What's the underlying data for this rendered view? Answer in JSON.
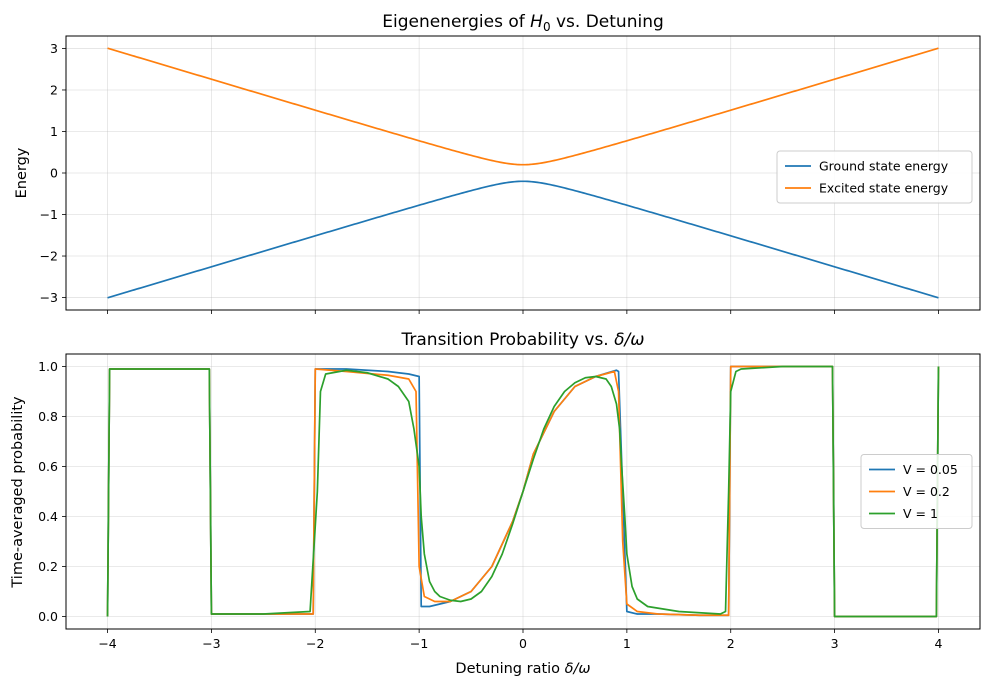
{
  "chart_data": [
    {
      "type": "line",
      "title": "Eigenenergies of H₀ vs. Detuning",
      "title_parts": {
        "pre": "Eigenenergies of ",
        "sym": "H",
        "sub": "0",
        "post": " vs. Detuning"
      },
      "xlabel": "",
      "ylabel": "Energy",
      "xlim": [
        -4.4,
        4.4
      ],
      "ylim": [
        -3.3,
        3.3
      ],
      "xticks": [
        -4,
        -3,
        -2,
        -1,
        0,
        1,
        2,
        3,
        4
      ],
      "xtick_labels_visible": false,
      "yticks": [
        3,
        2,
        1,
        0,
        -1,
        -2,
        -3
      ],
      "ytick_labels": [
        "3",
        "2",
        "1",
        "0",
        "−1",
        "−2",
        "−3"
      ],
      "grid": true,
      "legend": "center-right",
      "gap": 0.2,
      "series": [
        {
          "name": "Ground state energy",
          "color": "#1f77b4",
          "formula": "-sqrt((x*3/4)^2 + 0.2^2)",
          "x": [
            -4,
            -3,
            -2,
            -1,
            -0.5,
            0,
            0.5,
            1,
            2,
            3,
            4
          ],
          "y": [
            -3.0,
            -2.25,
            -1.51,
            -0.78,
            -0.43,
            -0.2,
            -0.43,
            -0.78,
            -1.51,
            -2.25,
            -3.0
          ]
        },
        {
          "name": "Excited state energy",
          "color": "#ff7f0e",
          "x": [
            -4,
            -3,
            -2,
            -1,
            -0.5,
            0,
            0.5,
            1,
            2,
            3,
            4
          ],
          "y": [
            3.0,
            2.25,
            1.51,
            0.78,
            0.43,
            0.2,
            0.43,
            0.78,
            1.51,
            2.25,
            3.0
          ]
        }
      ]
    },
    {
      "type": "line",
      "title": "Transition Probability vs. δ/ω",
      "title_parts": {
        "pre": "Transition Probability vs. ",
        "sym": "δ/ω"
      },
      "xlabel": "Detuning ratio δ/ω",
      "xlabel_parts": {
        "pre": "Detuning ratio ",
        "sym": "δ/ω"
      },
      "ylabel": "Time-averaged probability",
      "xlim": [
        -4.4,
        4.4
      ],
      "ylim": [
        -0.05,
        1.05
      ],
      "xticks": [
        -4,
        -3,
        -2,
        -1,
        0,
        1,
        2,
        3,
        4
      ],
      "xtick_labels": [
        "−4",
        "−3",
        "−2",
        "−1",
        "0",
        "1",
        "2",
        "3",
        "4"
      ],
      "yticks": [
        0.0,
        0.2,
        0.4,
        0.6,
        0.8,
        1.0
      ],
      "ytick_labels": [
        "0.0",
        "0.2",
        "0.4",
        "0.6",
        "0.8",
        "1.0"
      ],
      "grid": true,
      "legend": "center-right",
      "series": [
        {
          "name": "V = 0.05",
          "color": "#1f77b4",
          "x": [
            -4,
            -3.98,
            -3.5,
            -3.02,
            -3.0,
            -2.5,
            -2.02,
            -2.0,
            -1.7,
            -1.3,
            -1.1,
            -1.0,
            -0.98,
            -0.9,
            -0.7,
            -0.5,
            -0.3,
            -0.1,
            0,
            0.1,
            0.3,
            0.5,
            0.7,
            0.9,
            0.92,
            1.0,
            1.1,
            1.3,
            1.7,
            1.98,
            2.0,
            2.5,
            2.98,
            3.0,
            3.5,
            3.98,
            4.0
          ],
          "y": [
            0.0,
            0.99,
            0.99,
            0.99,
            0.01,
            0.01,
            0.01,
            0.99,
            0.99,
            0.98,
            0.97,
            0.96,
            0.04,
            0.04,
            0.06,
            0.1,
            0.2,
            0.38,
            0.5,
            0.65,
            0.82,
            0.92,
            0.96,
            0.985,
            0.98,
            0.02,
            0.01,
            0.01,
            0.005,
            0.005,
            1.0,
            1.0,
            1.0,
            0.0,
            0.0,
            0.0,
            1.0
          ]
        },
        {
          "name": "V = 0.2",
          "color": "#ff7f0e",
          "x": [
            -4,
            -3.98,
            -3.5,
            -3.02,
            -3.0,
            -2.5,
            -2.02,
            -2.0,
            -1.7,
            -1.3,
            -1.1,
            -1.03,
            -1.0,
            -0.95,
            -0.85,
            -0.7,
            -0.5,
            -0.3,
            -0.1,
            0,
            0.1,
            0.3,
            0.5,
            0.7,
            0.88,
            0.92,
            0.96,
            1.0,
            1.1,
            1.3,
            1.7,
            1.98,
            2.0,
            2.5,
            2.98,
            3.0,
            3.5,
            3.98,
            4.0
          ],
          "y": [
            0.0,
            0.99,
            0.99,
            0.99,
            0.01,
            0.01,
            0.01,
            0.99,
            0.98,
            0.965,
            0.95,
            0.9,
            0.2,
            0.08,
            0.06,
            0.06,
            0.1,
            0.2,
            0.38,
            0.5,
            0.65,
            0.82,
            0.92,
            0.96,
            0.98,
            0.9,
            0.3,
            0.05,
            0.02,
            0.01,
            0.005,
            0.005,
            1.0,
            1.0,
            1.0,
            0.0,
            0.0,
            0.0,
            1.0
          ]
        },
        {
          "name": "V = 1",
          "color": "#2ca02c",
          "x": [
            -4,
            -3.98,
            -3.5,
            -3.02,
            -3.0,
            -2.5,
            -2.05,
            -1.98,
            -1.95,
            -1.9,
            -1.7,
            -1.5,
            -1.3,
            -1.2,
            -1.1,
            -1.05,
            -1.0,
            -0.98,
            -0.95,
            -0.9,
            -0.85,
            -0.8,
            -0.7,
            -0.6,
            -0.5,
            -0.4,
            -0.3,
            -0.2,
            -0.1,
            0,
            0.1,
            0.2,
            0.3,
            0.4,
            0.5,
            0.6,
            0.7,
            0.8,
            0.85,
            0.9,
            0.93,
            0.95,
            0.98,
            1.0,
            1.05,
            1.1,
            1.2,
            1.5,
            1.9,
            1.95,
            1.98,
            2.0,
            2.05,
            2.1,
            2.5,
            2.98,
            3.0,
            3.5,
            3.98,
            4.0
          ],
          "y": [
            0.0,
            0.99,
            0.99,
            0.99,
            0.01,
            0.01,
            0.02,
            0.5,
            0.9,
            0.97,
            0.985,
            0.975,
            0.95,
            0.92,
            0.86,
            0.75,
            0.6,
            0.4,
            0.25,
            0.14,
            0.1,
            0.08,
            0.065,
            0.06,
            0.07,
            0.1,
            0.16,
            0.25,
            0.37,
            0.5,
            0.63,
            0.75,
            0.84,
            0.9,
            0.935,
            0.955,
            0.96,
            0.95,
            0.92,
            0.85,
            0.75,
            0.6,
            0.4,
            0.25,
            0.12,
            0.07,
            0.04,
            0.02,
            0.01,
            0.02,
            0.5,
            0.9,
            0.98,
            0.99,
            1.0,
            1.0,
            0.0,
            0.0,
            0.0,
            1.0
          ]
        }
      ]
    }
  ]
}
